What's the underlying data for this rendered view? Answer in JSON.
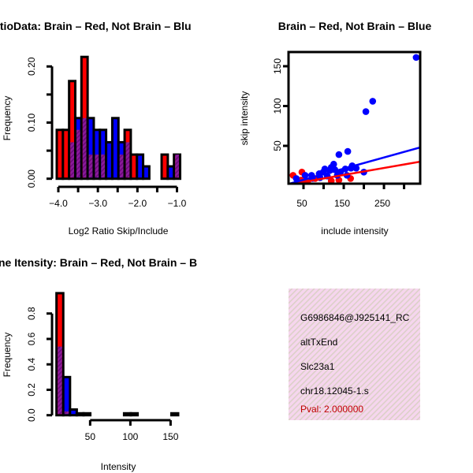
{
  "chart_data": [
    {
      "type": "bar",
      "title": "RatioData: Brain – Red, Not Brain – Blu",
      "xlabel": "Log2 Ratio Skip/Include",
      "ylabel": "Frequency",
      "xlim": [
        -4.04,
        -0.92
      ],
      "ylim": [
        0,
        0.2
      ],
      "xticks": [
        -4.0,
        -3.5,
        -3.0,
        -2.5,
        -2.0,
        -1.5,
        -1.0
      ],
      "xtick_labels": [
        "−4.0",
        "−3.0",
        "−2.0",
        "−1.0"
      ],
      "xtick_label_values": [
        -4.0,
        -3.0,
        -2.0,
        -1.0
      ],
      "yticks": [
        0,
        0.05,
        0.1,
        0.15,
        0.2
      ],
      "ytick_labels": [
        "0.00",
        "0.10",
        "0.20"
      ],
      "ytick_label_values": [
        0,
        0.1,
        0.2
      ],
      "bin_start": -4.04,
      "bin_width": 0.156,
      "series": [
        {
          "name": "Brain",
          "color": "#ff0000",
          "values": [
            0.087,
            0.087,
            0.174,
            0.087,
            0.217,
            0.043,
            0.043,
            0.043,
            0,
            0,
            0.043,
            0.087,
            0.043,
            0,
            0,
            0,
            0,
            0.043,
            0,
            0.043
          ]
        },
        {
          "name": "Not Brain",
          "color": "#0000ff",
          "values": [
            0,
            0,
            0.065,
            0.108,
            0.108,
            0.108,
            0.087,
            0.087,
            0.065,
            0.108,
            0.065,
            0.065,
            0,
            0.043,
            0.022,
            0,
            0,
            0,
            0.022,
            0.043
          ]
        }
      ],
      "overlap_color": "#8b1a9b"
    },
    {
      "type": "scatter",
      "title": "Brain – Red, Not Brain – Blue",
      "xlabel": "include intensity",
      "ylabel": "skip intensity",
      "xlim": [
        13,
        340
      ],
      "ylim": [
        2.5,
        167
      ],
      "xticks": [
        50,
        100,
        150,
        200,
        250,
        300
      ],
      "xtick_labels": [
        "50",
        "150",
        "250"
      ],
      "xtick_label_values": [
        50,
        150,
        250
      ],
      "yticks": [
        50,
        100,
        150
      ],
      "ytick_labels": [
        "50",
        "100",
        "150"
      ],
      "series": [
        {
          "name": "Brain",
          "color": "#ff0000",
          "points": [
            [
              24,
              13
            ],
            [
              46,
              17
            ],
            [
              44,
              7
            ],
            [
              79,
              9
            ],
            [
              119,
              6
            ],
            [
              138,
              7
            ],
            [
              167,
              9
            ],
            [
              60,
              5
            ]
          ],
          "fit": {
            "slope": 0.088,
            "intercept": 0.2
          }
        },
        {
          "name": "Not Brain",
          "color": "#0000ff",
          "points": [
            [
              330,
              161
            ],
            [
              205,
              93
            ],
            [
              222,
              106
            ],
            [
              138,
              39
            ],
            [
              160,
              43
            ],
            [
              171,
              25
            ],
            [
              125,
              27
            ],
            [
              54,
              13
            ],
            [
              70,
              13
            ],
            [
              89,
              15
            ],
            [
              99,
              17
            ],
            [
              115,
              19
            ],
            [
              128,
              20
            ],
            [
              142,
              17
            ],
            [
              154,
              21
            ],
            [
              168,
              22
            ],
            [
              181,
              22
            ],
            [
              200,
              17
            ],
            [
              91,
              10
            ],
            [
              109,
              12
            ],
            [
              134,
              13
            ],
            [
              158,
              13
            ],
            [
              72,
              9
            ],
            [
              103,
              21
            ],
            [
              119,
              23
            ],
            [
              32,
              9
            ]
          ],
          "fit": {
            "slope": 0.14,
            "intercept": 0.4
          }
        }
      ]
    },
    {
      "type": "bar",
      "title": "ne Itensity: Brain – Red, Not Brain – B",
      "xlabel": "Intensity",
      "ylabel": "Frequency",
      "xlim": [
        0,
        170
      ],
      "ylim": [
        0,
        0.96
      ],
      "xticks": [
        50,
        100,
        150
      ],
      "xtick_labels": [
        "50",
        "100",
        "150"
      ],
      "yticks": [
        0,
        0.2,
        0.4,
        0.6,
        0.8
      ],
      "ytick_labels": [
        "0.0",
        "0.2",
        "0.4",
        "0.6",
        "0.8"
      ],
      "bin_start": 8.2,
      "bin_width": 8.4,
      "series": [
        {
          "name": "Brain",
          "color": "#ff0000",
          "values": [
            0.96,
            0.03,
            0,
            0,
            0,
            0,
            0,
            0,
            0,
            0,
            0,
            0,
            0,
            0,
            0,
            0,
            0,
            0
          ]
        },
        {
          "name": "Not Brain",
          "color": "#0000ff",
          "values": [
            0.54,
            0.3,
            0.045,
            0.015,
            0.015,
            0,
            0,
            0,
            0,
            0,
            0.015,
            0.015,
            0,
            0,
            0,
            0,
            0,
            0.015
          ]
        }
      ],
      "overlap_color": "#8b1a9b"
    }
  ],
  "info_panel": {
    "lines": [
      "G6986846@J925141_RC",
      "altTxEnd",
      "Slc23a1",
      "chr18.12045-1.s"
    ],
    "pval": "Pval: 2.000000",
    "pval_color": "#c00000"
  }
}
